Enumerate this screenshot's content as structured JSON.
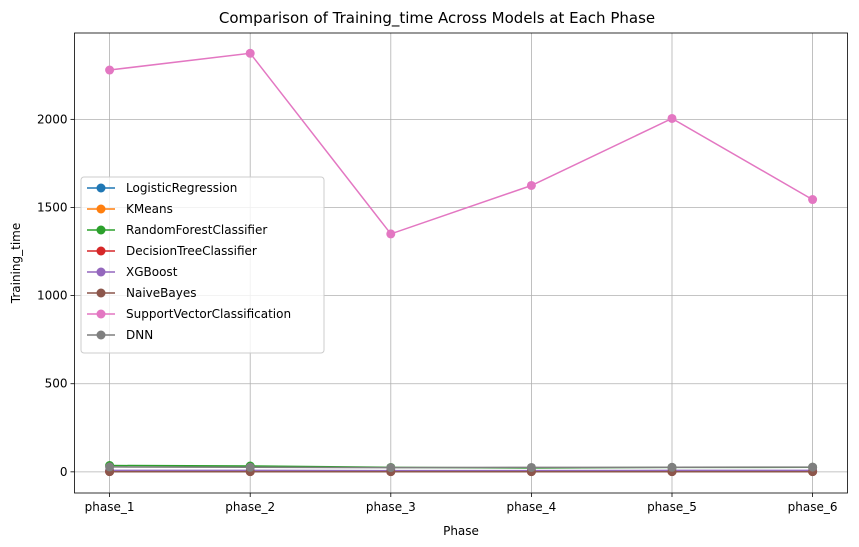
{
  "chart_data": {
    "type": "line",
    "title": "Comparison of Training_time Across Models at Each Phase",
    "xlabel": "Phase",
    "ylabel": "Training_time",
    "categories": [
      "phase_1",
      "phase_2",
      "phase_3",
      "phase_4",
      "phase_5",
      "phase_6"
    ],
    "yticks": [
      0,
      500,
      1000,
      1500,
      2000
    ],
    "ylim": [
      -120,
      2490
    ],
    "grid": true,
    "legend_position": "center-left",
    "series": [
      {
        "name": "LogisticRegression",
        "color": "#1f77b4",
        "values": [
          5,
          5,
          4,
          5,
          5,
          5
        ]
      },
      {
        "name": "KMeans",
        "color": "#ff7f0e",
        "values": [
          3,
          3,
          3,
          3,
          3,
          3
        ]
      },
      {
        "name": "RandomForestClassifier",
        "color": "#2ca02c",
        "values": [
          36,
          33,
          25,
          22,
          25,
          26
        ]
      },
      {
        "name": "DecisionTreeClassifier",
        "color": "#d62728",
        "values": [
          2,
          2,
          2,
          2,
          2,
          2
        ]
      },
      {
        "name": "XGBoost",
        "color": "#9467bd",
        "values": [
          8,
          8,
          7,
          7,
          8,
          8
        ]
      },
      {
        "name": "NaiveBayes",
        "color": "#8c564b",
        "values": [
          1,
          1,
          1,
          1,
          1,
          1
        ]
      },
      {
        "name": "SupportVectorClassification",
        "color": "#e377c2",
        "values": [
          2280,
          2375,
          1350,
          1625,
          2005,
          1545
        ]
      },
      {
        "name": "DNN",
        "color": "#7f7f7f",
        "values": [
          28,
          26,
          24,
          25,
          26,
          27
        ]
      }
    ]
  }
}
